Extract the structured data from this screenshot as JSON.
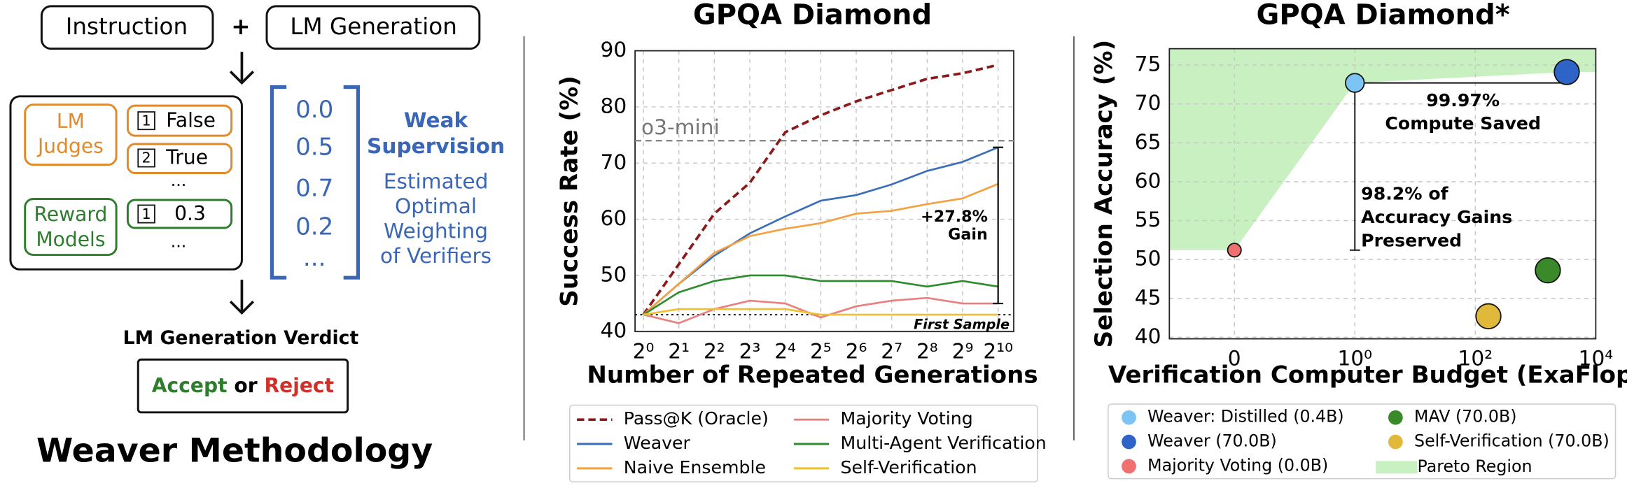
{
  "diagram": {
    "title": "Weaver Methodology",
    "instruction": "Instruction",
    "plus": "+",
    "generation": "LM Generation",
    "judges": [
      "LM",
      "Judges"
    ],
    "judge_outputs": [
      {
        "index": "1",
        "text": "False"
      },
      {
        "index": "2",
        "text": "True"
      }
    ],
    "judge_more": "...",
    "rewards": [
      "Reward",
      "Models"
    ],
    "reward_outputs": [
      {
        "index": "1",
        "text": "0.3"
      }
    ],
    "reward_more": "...",
    "weights": [
      "0.0",
      "0.5",
      "0.7",
      "0.2",
      "..."
    ],
    "weak_supervision": [
      "Weak",
      "Supervision"
    ],
    "estimated": [
      "Estimated",
      "Optimal",
      "Weighting",
      "of Verifiers"
    ],
    "verdict_title": "LM Generation Verdict",
    "accept": "Accept",
    "or": "or",
    "reject": "Reject"
  },
  "chart_data": [
    {
      "type": "line",
      "title": "GPQA Diamond",
      "xlabel": "Number of Repeated Generations",
      "ylabel": "Success Rate (%)",
      "xscale": "log",
      "xbase": 2,
      "x": [
        1,
        2,
        4,
        8,
        16,
        32,
        64,
        128,
        256,
        512,
        1024
      ],
      "xlim": [
        0.85,
        1390
      ],
      "xticks": [
        {
          "value": 1,
          "label": "2⁰"
        },
        {
          "value": 2,
          "label": "2¹"
        },
        {
          "value": 4,
          "label": "2²"
        },
        {
          "value": 8,
          "label": "2³"
        },
        {
          "value": 16,
          "label": "2⁴"
        },
        {
          "value": 32,
          "label": "2⁵"
        },
        {
          "value": 64,
          "label": "2⁶"
        },
        {
          "value": 128,
          "label": "2⁷"
        },
        {
          "value": 256,
          "label": "2⁸"
        },
        {
          "value": 512,
          "label": "2⁹"
        },
        {
          "value": 1024,
          "label": "2¹⁰"
        }
      ],
      "ylim": [
        40,
        90
      ],
      "yticks": [
        40,
        50,
        60,
        70,
        80,
        90
      ],
      "grid": true,
      "series": [
        {
          "name": "Pass@K (Oracle)",
          "color": "#8b1a1a",
          "dashed": true,
          "values": [
            43,
            52,
            61,
            66.5,
            75.5,
            78.5,
            81,
            83,
            85,
            86,
            87.5
          ]
        },
        {
          "name": "Weaver",
          "color": "#3a6fb8",
          "values": [
            43,
            48.5,
            53.5,
            57.5,
            60.5,
            63.3,
            64.3,
            66.2,
            68.6,
            70.2,
            72.8
          ]
        },
        {
          "name": "Naive Ensemble",
          "color": "#f4a142",
          "values": [
            43,
            48.5,
            54,
            57,
            58.3,
            59.3,
            61,
            61.5,
            62.7,
            63.7,
            66.3
          ]
        },
        {
          "name": "Majority Voting",
          "color": "#e98080",
          "values": [
            43,
            41.5,
            44,
            45.5,
            45,
            42.5,
            44.5,
            45.5,
            46,
            45,
            45
          ]
        },
        {
          "name": "Multi-Agent Verification",
          "color": "#2e8b2e",
          "values": [
            43,
            47,
            49,
            50,
            50,
            49,
            49,
            49,
            48,
            49,
            48
          ]
        },
        {
          "name": "Self-Verification",
          "color": "#f0c030",
          "values": [
            43,
            44,
            44,
            44,
            44,
            43,
            43,
            43,
            43,
            43,
            43
          ]
        }
      ],
      "reference_lines": [
        {
          "label": "o3-mini",
          "value": 74
        },
        {
          "label": "First Sample",
          "value": 43
        }
      ],
      "gain_bracket": {
        "text": [
          "+27.8%",
          "Gain"
        ],
        "x": 1024,
        "from": 45,
        "to": 72.8
      }
    },
    {
      "type": "scatter",
      "title": "GPQA Diamond*",
      "xlabel": "Verification Computer Budget (ExaFlops)",
      "ylabel": "Selection Accuracy (%)",
      "xscale": "symlog",
      "linthresh": 1,
      "xlim": [
        -0.54,
        10000
      ],
      "xticks": [
        0,
        {
          "value": 1,
          "label": "10⁰"
        },
        {
          "value": 100,
          "label": "10²"
        },
        {
          "value": 10000,
          "label": "10⁴"
        }
      ],
      "ylim": [
        39.8,
        77.1
      ],
      "yticks": [
        40,
        45,
        50,
        55,
        60,
        65,
        70,
        75
      ],
      "grid": true,
      "series": [
        {
          "name": "Weaver: Distilled (0.4B)",
          "color": "#7cc4f4",
          "x": [
            1
          ],
          "values": [
            72.7
          ]
        },
        {
          "name": "Weaver (70.0B)",
          "color": "#2e64c8",
          "x": [
            3300
          ],
          "values": [
            74.1
          ]
        },
        {
          "name": "Majority Voting (0.0B)",
          "color": "#f07070",
          "x": [
            0
          ],
          "values": [
            51.2
          ]
        },
        {
          "name": "MAV (70.0B)",
          "color": "#3a8a2a",
          "x": [
            1600
          ],
          "values": [
            48.6
          ]
        },
        {
          "name": "Self-Verification (70.0B)",
          "color": "#e0b83a",
          "x": [
            165
          ],
          "values": [
            42.7
          ]
        }
      ],
      "pareto_region": {
        "name": "Pareto Region",
        "color": "#c8f0c0"
      },
      "annotations": [
        {
          "text": [
            "99.97%",
            "Compute Saved"
          ]
        },
        {
          "text": [
            "98.2% of",
            "Accuracy Gains",
            "Preserved"
          ]
        }
      ]
    }
  ]
}
